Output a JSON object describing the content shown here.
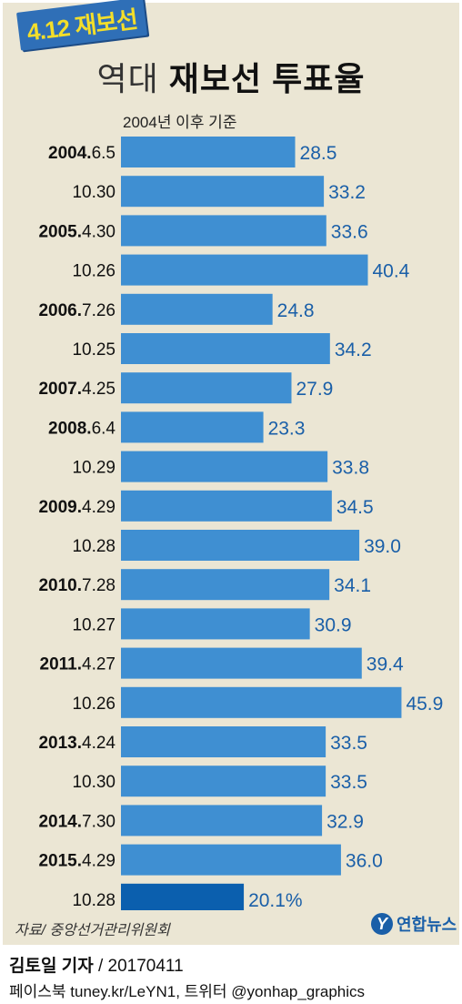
{
  "badge": "4.12 재보선",
  "title_light": "역대",
  "title_bold": "재보선 투표율",
  "chart_data": {
    "type": "bar",
    "orientation": "horizontal",
    "subtitle": "2004년 이후 기준",
    "rows": [
      {
        "year": "2004.",
        "date": "6.5",
        "value": 28.5,
        "label": "28.5"
      },
      {
        "year": "",
        "date": "10.30",
        "value": 33.2,
        "label": "33.2"
      },
      {
        "year": "2005.",
        "date": "4.30",
        "value": 33.6,
        "label": "33.6"
      },
      {
        "year": "",
        "date": "10.26",
        "value": 40.4,
        "label": "40.4"
      },
      {
        "year": "2006.",
        "date": "7.26",
        "value": 24.8,
        "label": "24.8"
      },
      {
        "year": "",
        "date": "10.25",
        "value": 34.2,
        "label": "34.2"
      },
      {
        "year": "2007.",
        "date": "4.25",
        "value": 27.9,
        "label": "27.9"
      },
      {
        "year": "2008.",
        "date": "6.4",
        "value": 23.3,
        "label": "23.3"
      },
      {
        "year": "",
        "date": "10.29",
        "value": 33.8,
        "label": "33.8"
      },
      {
        "year": "2009.",
        "date": "4.29",
        "value": 34.5,
        "label": "34.5"
      },
      {
        "year": "",
        "date": "10.28",
        "value": 39.0,
        "label": "39.0"
      },
      {
        "year": "2010.",
        "date": "7.28",
        "value": 34.1,
        "label": "34.1"
      },
      {
        "year": "",
        "date": "10.27",
        "value": 30.9,
        "label": "30.9"
      },
      {
        "year": "2011.",
        "date": "4.27",
        "value": 39.4,
        "label": "39.4"
      },
      {
        "year": "",
        "date": "10.26",
        "value": 45.9,
        "label": "45.9"
      },
      {
        "year": "2013.",
        "date": "4.24",
        "value": 33.5,
        "label": "33.5"
      },
      {
        "year": "",
        "date": "10.30",
        "value": 33.5,
        "label": "33.5"
      },
      {
        "year": "2014.",
        "date": "7.30",
        "value": 32.9,
        "label": "32.9"
      },
      {
        "year": "2015.",
        "date": "4.29",
        "value": 36.0,
        "label": "36.0"
      },
      {
        "year": "",
        "date": "10.28",
        "value": 20.1,
        "label": "20.1%",
        "highlight": true
      }
    ],
    "colors": {
      "bar": "#3f8fd2",
      "highlight": "#0b5fae",
      "value_text": "#1a5fa8"
    }
  },
  "source": "자료/ 중앙선거관리위원회",
  "logo": {
    "mark": "Y",
    "name": "연합뉴스"
  },
  "byline": {
    "author": "김토일 기자",
    "date": "/ 20170411"
  },
  "social": "페이스북 tuney.kr/LeYN1, 트위터 @yonhap_graphics"
}
